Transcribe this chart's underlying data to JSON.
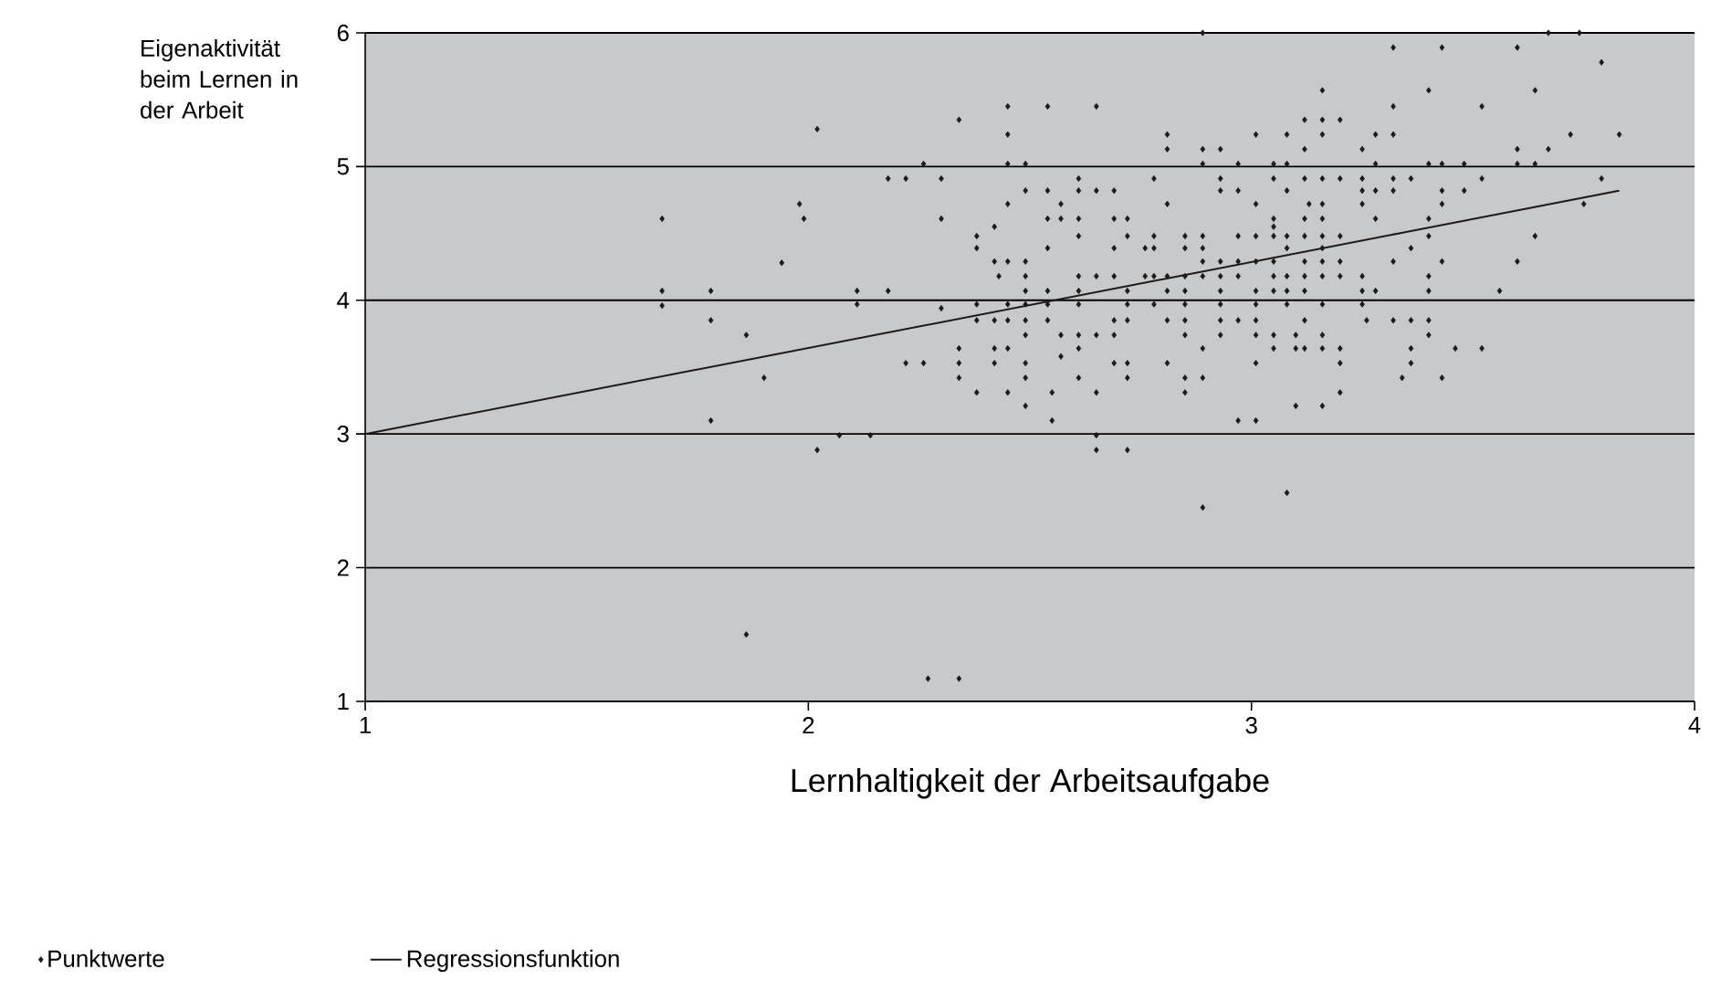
{
  "chart_data": {
    "type": "scatter",
    "xlabel": "Lernhaltigkeit der Arbeitsaufgabe",
    "ylabel": "Eigenaktivität beim Lernen in der Arbeit",
    "xlim": [
      1,
      4
    ],
    "ylim": [
      1,
      6
    ],
    "xticks": [
      1,
      2,
      3,
      4
    ],
    "yticks": [
      1,
      2,
      3,
      4,
      5,
      6
    ],
    "grid": "y",
    "legend": "bottom",
    "series": [
      {
        "name": "Punktwerte",
        "color": "#1a1a1a",
        "marker": "diamond",
        "x": [
          2.02,
          1.98,
          1.99,
          1.67,
          1.94,
          1.67,
          1.78,
          1.67,
          1.78,
          1.86,
          1.9,
          1.78,
          2.02,
          1.86,
          2.89,
          2.34,
          2.45,
          2.54,
          2.65,
          2.45,
          2.81,
          2.81,
          2.89,
          2.93,
          2.26,
          2.45,
          2.49,
          2.89,
          2.97,
          2.18,
          2.22,
          2.3,
          2.61,
          2.78,
          2.93,
          2.49,
          2.54,
          2.61,
          2.65,
          2.69,
          2.93,
          2.97,
          2.45,
          2.57,
          2.81,
          2.3,
          2.54,
          2.57,
          2.61,
          2.69,
          2.72,
          2.42,
          2.38,
          2.61,
          2.72,
          2.78,
          2.85,
          2.89,
          2.97,
          2.38,
          2.54,
          2.69,
          2.76,
          2.78,
          2.85,
          2.89,
          2.42,
          2.45,
          2.49,
          2.89,
          2.93,
          2.97,
          2.43,
          2.49,
          2.61,
          2.65,
          2.69,
          2.76,
          2.78,
          2.81,
          2.85,
          2.89,
          2.93,
          2.97,
          2.11,
          2.18,
          2.49,
          2.54,
          2.61,
          2.72,
          2.81,
          2.85,
          2.93,
          2.3,
          2.11,
          2.38,
          2.45,
          2.49,
          2.54,
          2.61,
          2.72,
          2.78,
          2.85,
          2.93,
          2.38,
          2.42,
          2.45,
          2.49,
          2.54,
          2.69,
          2.72,
          2.81,
          2.85,
          2.93,
          2.97,
          2.49,
          2.57,
          2.61,
          2.65,
          2.69,
          2.85,
          2.93,
          2.34,
          2.42,
          2.45,
          2.61,
          2.89,
          2.57,
          2.22,
          2.26,
          2.34,
          2.42,
          2.49,
          2.69,
          2.72,
          2.81,
          2.34,
          2.49,
          2.61,
          2.72,
          2.85,
          2.89,
          2.38,
          2.45,
          2.55,
          2.65,
          2.85,
          2.49,
          2.55,
          2.97,
          2.07,
          2.14,
          2.65,
          2.65,
          2.72,
          2.89,
          2.27,
          2.34,
          3.67,
          3.74,
          3.32,
          3.43,
          3.6,
          3.79,
          3.16,
          3.4,
          3.64,
          3.32,
          3.52,
          3.12,
          3.16,
          3.2,
          3.01,
          3.08,
          3.16,
          3.28,
          3.32,
          3.72,
          3.83,
          3.12,
          3.25,
          3.6,
          3.67,
          3.05,
          3.08,
          3.28,
          3.4,
          3.43,
          3.48,
          3.6,
          3.64,
          3.05,
          3.12,
          3.16,
          3.2,
          3.25,
          3.32,
          3.36,
          3.52,
          3.79,
          3.08,
          3.25,
          3.28,
          3.32,
          3.43,
          3.48,
          3.01,
          3.13,
          3.16,
          3.25,
          3.43,
          3.75,
          3.05,
          3.12,
          3.16,
          3.28,
          3.4,
          3.05,
          3.01,
          3.05,
          3.08,
          3.12,
          3.16,
          3.2,
          3.4,
          3.64,
          3.08,
          3.16,
          3.36,
          3.01,
          3.05,
          3.12,
          3.16,
          3.2,
          3.32,
          3.43,
          3.6,
          3.05,
          3.08,
          3.12,
          3.16,
          3.2,
          3.25,
          3.4,
          3.01,
          3.05,
          3.08,
          3.12,
          3.25,
          3.28,
          3.4,
          3.56,
          3.01,
          3.08,
          3.16,
          3.25,
          3.01,
          3.12,
          3.26,
          3.32,
          3.36,
          3.4,
          3.01,
          3.05,
          3.1,
          3.16,
          3.4,
          3.05,
          3.1,
          3.12,
          3.16,
          3.2,
          3.36,
          3.46,
          3.52,
          3.01,
          3.2,
          3.36,
          3.34,
          3.43,
          3.2,
          3.1,
          3.16,
          3.01,
          3.08
        ],
        "values": [
          5.28,
          4.72,
          4.61,
          4.61,
          4.28,
          4.07,
          4.07,
          3.96,
          3.85,
          3.74,
          3.42,
          3.1,
          2.88,
          1.5,
          6.0,
          5.35,
          5.45,
          5.45,
          5.45,
          5.24,
          5.24,
          5.13,
          5.13,
          5.13,
          5.02,
          5.02,
          5.02,
          5.02,
          5.02,
          4.91,
          4.91,
          4.91,
          4.91,
          4.91,
          4.91,
          4.82,
          4.82,
          4.82,
          4.82,
          4.82,
          4.82,
          4.82,
          4.72,
          4.72,
          4.72,
          4.61,
          4.61,
          4.61,
          4.61,
          4.61,
          4.61,
          4.55,
          4.48,
          4.48,
          4.48,
          4.48,
          4.48,
          4.48,
          4.48,
          4.39,
          4.39,
          4.39,
          4.39,
          4.39,
          4.39,
          4.39,
          4.29,
          4.29,
          4.29,
          4.29,
          4.29,
          4.29,
          4.18,
          4.18,
          4.18,
          4.18,
          4.18,
          4.18,
          4.18,
          4.18,
          4.18,
          4.18,
          4.18,
          4.18,
          4.07,
          4.07,
          4.07,
          4.07,
          4.07,
          4.07,
          4.07,
          4.07,
          4.07,
          3.94,
          3.97,
          3.97,
          3.97,
          3.97,
          3.97,
          3.97,
          3.97,
          3.97,
          3.97,
          3.97,
          3.85,
          3.85,
          3.85,
          3.85,
          3.85,
          3.85,
          3.85,
          3.85,
          3.85,
          3.85,
          3.85,
          3.74,
          3.74,
          3.74,
          3.74,
          3.74,
          3.74,
          3.74,
          3.64,
          3.64,
          3.64,
          3.64,
          3.64,
          3.58,
          3.53,
          3.53,
          3.53,
          3.53,
          3.53,
          3.53,
          3.53,
          3.53,
          3.42,
          3.42,
          3.42,
          3.42,
          3.42,
          3.42,
          3.31,
          3.31,
          3.31,
          3.31,
          3.31,
          3.21,
          3.1,
          3.1,
          2.99,
          2.99,
          2.99,
          2.88,
          2.88,
          2.45,
          1.17,
          1.17,
          6.0,
          6.0,
          5.89,
          5.89,
          5.89,
          5.78,
          5.57,
          5.57,
          5.57,
          5.45,
          5.45,
          5.35,
          5.35,
          5.35,
          5.24,
          5.24,
          5.24,
          5.24,
          5.24,
          5.24,
          5.24,
          5.13,
          5.13,
          5.13,
          5.13,
          5.02,
          5.02,
          5.02,
          5.02,
          5.02,
          5.02,
          5.02,
          5.02,
          4.91,
          4.91,
          4.91,
          4.91,
          4.91,
          4.91,
          4.91,
          4.91,
          4.91,
          4.82,
          4.82,
          4.82,
          4.82,
          4.82,
          4.82,
          4.72,
          4.72,
          4.72,
          4.72,
          4.72,
          4.72,
          4.61,
          4.61,
          4.61,
          4.61,
          4.61,
          4.55,
          4.48,
          4.48,
          4.48,
          4.48,
          4.48,
          4.48,
          4.48,
          4.48,
          4.39,
          4.39,
          4.39,
          4.29,
          4.29,
          4.29,
          4.29,
          4.29,
          4.29,
          4.29,
          4.29,
          4.18,
          4.18,
          4.18,
          4.18,
          4.18,
          4.18,
          4.18,
          4.07,
          4.07,
          4.07,
          4.07,
          4.07,
          4.07,
          4.07,
          4.07,
          3.97,
          3.97,
          3.97,
          3.97,
          3.85,
          3.85,
          3.85,
          3.85,
          3.85,
          3.85,
          3.74,
          3.74,
          3.74,
          3.74,
          3.74,
          3.64,
          3.64,
          3.64,
          3.64,
          3.64,
          3.64,
          3.64,
          3.64,
          3.53,
          3.53,
          3.53,
          3.42,
          3.42,
          3.31,
          3.21,
          3.21,
          3.1,
          2.56
        ]
      },
      {
        "name": "Regressionsfunktion",
        "type": "line",
        "color": "#1a1a1a",
        "line_style": "solid",
        "x": [
          1,
          3.83
        ],
        "values": [
          3.0,
          4.82
        ]
      }
    ]
  }
}
